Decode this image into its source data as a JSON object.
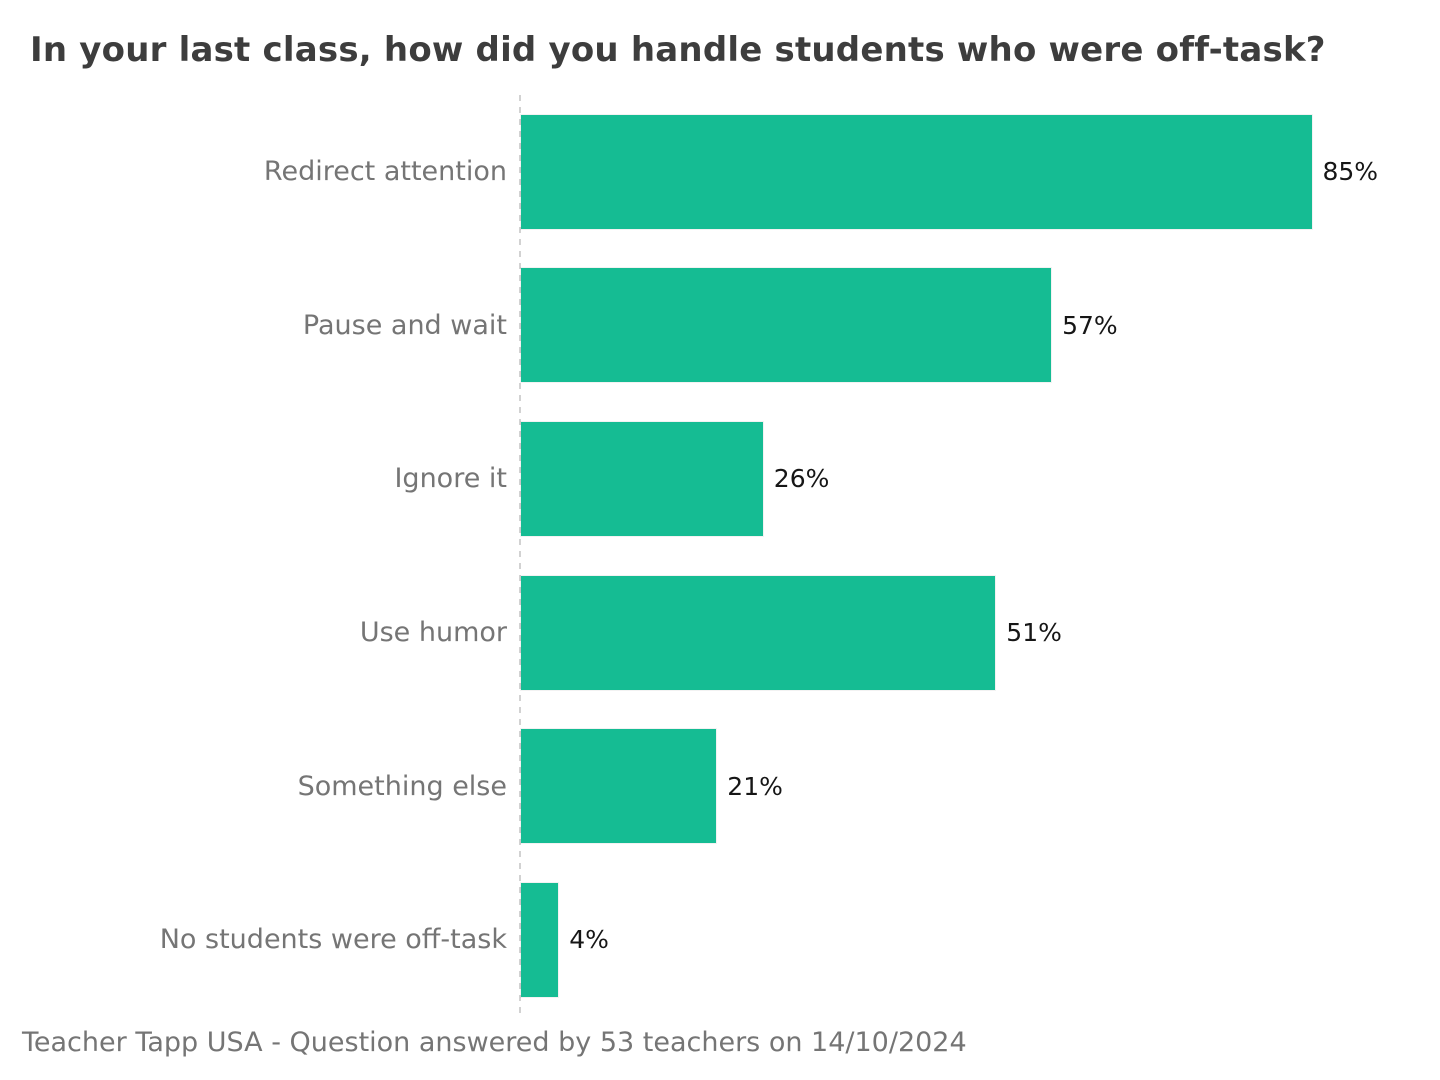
{
  "title": "In your last class, how did you handle students who were off-task?",
  "footer": "Teacher Tapp USA - Question answered by 53 teachers on 14/10/2024",
  "colors": {
    "bar": "#15bc93",
    "title": "#3d3d3d",
    "category_label": "#757575",
    "value_label": "#161616",
    "footer": "#757575",
    "axis": "#d2d2d2"
  },
  "chart_data": {
    "type": "bar",
    "orientation": "horizontal",
    "title": "In your last class, how did you handle students who were off-task?",
    "categories": [
      "Redirect attention",
      "Pause and wait",
      "Ignore it",
      "Use humor",
      "Something else",
      "No students were off-task"
    ],
    "values": [
      85,
      57,
      26,
      51,
      21,
      4
    ],
    "value_labels": [
      "85%",
      "57%",
      "26%",
      "51%",
      "21%",
      "4%"
    ],
    "unit": "%",
    "xlabel": "",
    "ylabel": "",
    "xlim": [
      0,
      100
    ],
    "grid": false,
    "legend": false,
    "axis_style": "dashed-baseline-left",
    "source": "Teacher Tapp USA - Question answered by 53 teachers on 14/10/2024"
  }
}
